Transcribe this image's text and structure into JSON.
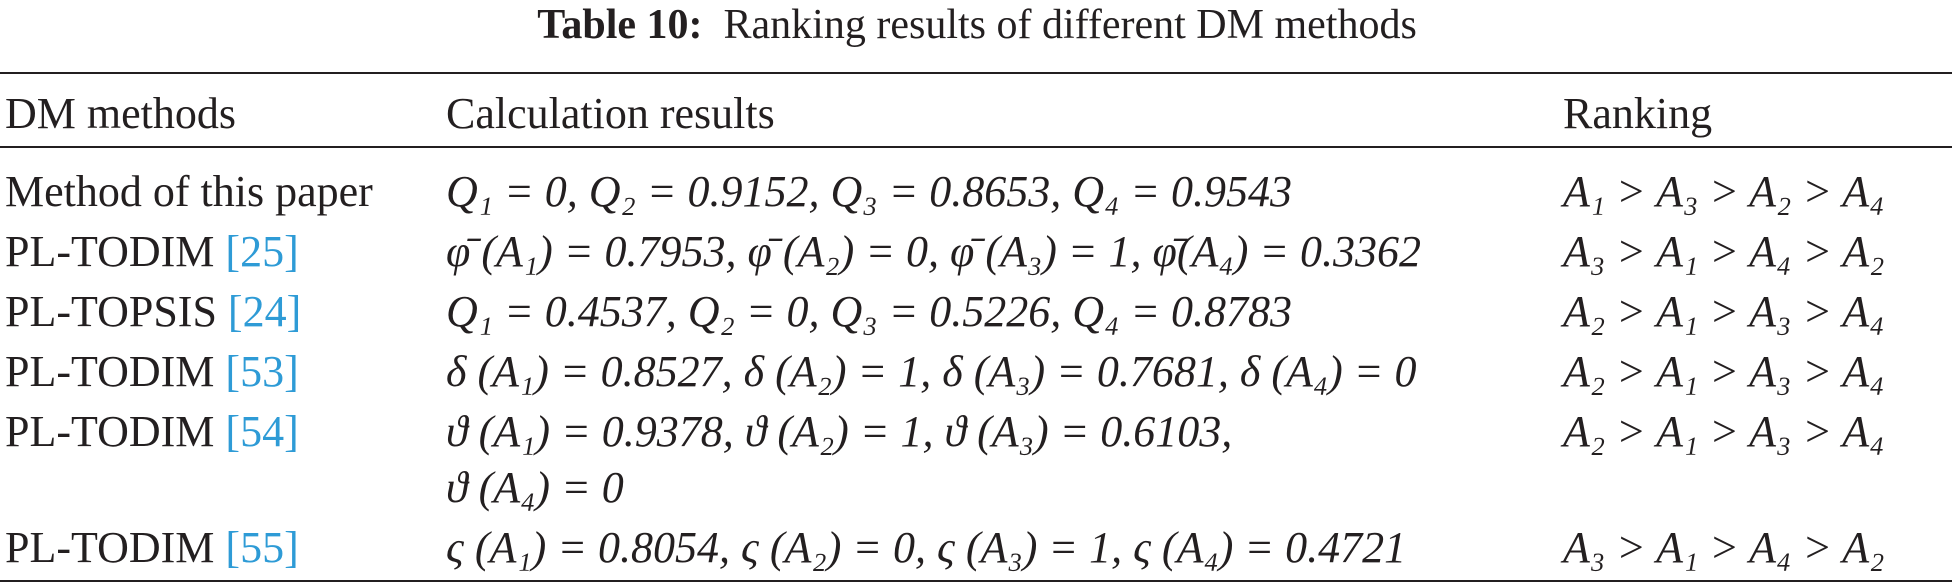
{
  "title": {
    "label": "Table 10:",
    "text": "Ranking results of different DM methods"
  },
  "table": {
    "header": [
      "DM methods",
      "Calculation results",
      "Ranking"
    ],
    "rows": [
      {
        "method": "Method of this paper",
        "results": [
          "Q₁ = 0, Q₂ = 0.9152, Q₃ = 0.8653, Q₄ = 0.9543"
        ],
        "ranking": "A₁ > A₃ > A₂ > A₄"
      },
      {
        "method": "PL-TODIM",
        "ref": "[25]",
        "results": [
          "φ̄ (A₁) = 0.7953, φ̄ (A₂) = 0, φ̄ (A₃) = 1, φ̄(A₄) = 0.3362"
        ],
        "ranking": "A₃ > A₁ > A₄ > A₂"
      },
      {
        "method": "PL-TOPSIS",
        "ref": "[24]",
        "results": [
          "Q₁ = 0.4537, Q₂ = 0, Q₃ = 0.5226, Q₄ = 0.8783"
        ],
        "ranking": "A₂ > A₁ > A₃ > A₄"
      },
      {
        "method": "PL-TODIM",
        "ref": "[53]",
        "results": [
          "δ (A₁) = 0.8527, δ (A₂) = 1, δ (A₃) = 0.7681, δ (A₄) = 0"
        ],
        "ranking": "A₂ > A₁ > A₃ > A₄"
      },
      {
        "method": "PL-TODIM",
        "ref": "[54]",
        "results": [
          "ϑ (A₁) = 0.9378, ϑ (A₂) = 1, ϑ (A₃) = 0.6103,",
          "ϑ (A₄) = 0"
        ],
        "ranking": "A₂ > A₁ > A₃ > A₄"
      },
      {
        "method": "PL-TODIM",
        "ref": "[55]",
        "results": [
          "ς (A₁) = 0.8054, ς (A₂) = 0, ς (A₃) = 1, ς (A₄) = 0.4721"
        ],
        "ranking": "A₃ > A₁ > A₄ > A₂"
      }
    ]
  }
}
